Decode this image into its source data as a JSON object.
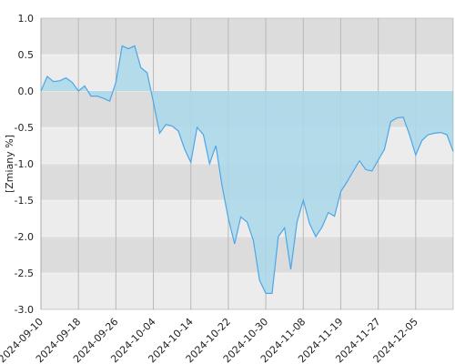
{
  "chart_data": {
    "type": "area",
    "y_label": "[Zmiany %]",
    "categories": [
      "2024-09-10",
      null,
      null,
      null,
      null,
      null,
      "2024-09-18",
      null,
      null,
      null,
      null,
      null,
      "2024-09-26",
      null,
      null,
      null,
      null,
      null,
      "2024-10-04",
      null,
      null,
      null,
      null,
      null,
      "2024-10-14",
      null,
      null,
      null,
      null,
      null,
      "2024-10-22",
      null,
      null,
      null,
      null,
      null,
      "2024-10-30",
      null,
      null,
      null,
      null,
      null,
      "2024-11-08",
      null,
      null,
      null,
      null,
      null,
      "2024-11-19",
      null,
      null,
      null,
      null,
      null,
      "2024-11-27",
      null,
      null,
      null,
      null,
      null,
      "2024-12-05",
      null,
      null,
      null,
      null,
      null,
      null
    ],
    "values": [
      0.0,
      0.2,
      0.13,
      0.14,
      0.18,
      0.12,
      0.0,
      0.07,
      -0.07,
      -0.07,
      -0.1,
      -0.14,
      0.12,
      0.62,
      0.58,
      0.62,
      0.32,
      0.25,
      -0.15,
      -0.58,
      -0.46,
      -0.48,
      -0.55,
      -0.8,
      -0.98,
      -0.5,
      -0.6,
      -1.0,
      -0.75,
      -1.3,
      -1.75,
      -2.1,
      -1.73,
      -1.8,
      -2.05,
      -2.6,
      -2.78,
      -2.78,
      -2.0,
      -1.88,
      -2.45,
      -1.8,
      -1.5,
      -1.82,
      -2.0,
      -1.87,
      -1.67,
      -1.72,
      -1.38,
      -1.25,
      -1.1,
      -0.96,
      -1.08,
      -1.1,
      -0.95,
      -0.8,
      -0.42,
      -0.37,
      -0.36,
      -0.6,
      -0.88,
      -0.68,
      -0.6,
      -0.58,
      -0.57,
      -0.6,
      -0.83
    ],
    "color": "#4da6e8",
    "fill": "#a9d8ea",
    "ylim": [
      -3,
      1
    ],
    "yticks": [
      {
        "value": 1,
        "label": "1.0"
      },
      0.5,
      {
        "value": 0,
        "label": "0.0"
      },
      -0.5,
      {
        "value": -1,
        "label": "-1.0"
      },
      -1.5,
      {
        "value": -2,
        "label": "-2.0"
      },
      -2.5,
      {
        "value": -3,
        "label": "-3.0"
      }
    ],
    "grid": true
  }
}
